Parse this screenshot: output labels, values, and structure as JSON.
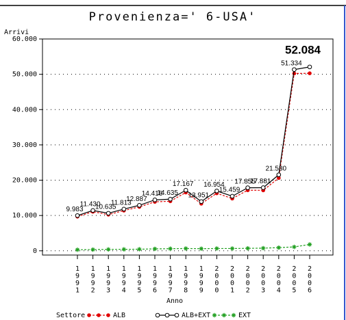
{
  "chart_data": {
    "type": "line",
    "title": "Provenienza=' 6-USA'",
    "y_label": "Arrivi",
    "x_label": "Anno",
    "legend_title": "Settore",
    "categories": [
      "1991",
      "1992",
      "1993",
      "1994",
      "1995",
      "1996",
      "1997",
      "1998",
      "1999",
      "2000",
      "2001",
      "2002",
      "2003",
      "2004",
      "2005",
      "2006"
    ],
    "series": [
      {
        "name": "ALB",
        "color": "#e00000",
        "marker": "dot",
        "values": [
          9680,
          11080,
          10240,
          11390,
          12440,
          13870,
          14040,
          16520,
          13350,
          16300,
          14810,
          17160,
          17130,
          20630,
          50230,
          50280
        ]
      },
      {
        "name": "ALB+EXT",
        "color": "#000000",
        "marker": "circle",
        "values": [
          9983,
          11430,
          10635,
          11813,
          12887,
          14418,
          14635,
          17167,
          13951,
          16954,
          15459,
          17855,
          17881,
          21530,
          51334,
          52084
        ],
        "value_labels": [
          "9.983",
          "11.430",
          "10.635",
          "11.813",
          "12.887",
          "14.418",
          "14.635",
          "17.167",
          "13.951",
          "16.954",
          "15.459",
          "17.855",
          "17.881",
          "21.530",
          "51.334",
          "52.084"
        ]
      },
      {
        "name": "EXT",
        "color": "#22a022",
        "marker": "star",
        "values": [
          300,
          350,
          400,
          420,
          450,
          550,
          600,
          650,
          600,
          650,
          650,
          700,
          750,
          900,
          1100,
          1800
        ]
      }
    ],
    "ylim": [
      -1200,
      60000
    ],
    "yticks": [
      0,
      {
        "value": 10000,
        "label": "10.000"
      },
      {
        "value": 20000,
        "label": "20.000"
      },
      {
        "value": 30000,
        "label": "30.000"
      },
      {
        "value": 40000,
        "label": "40.000"
      },
      {
        "value": 50000,
        "label": "50.000"
      },
      {
        "value": 60000,
        "label": "60.000"
      }
    ],
    "grid": true
  }
}
